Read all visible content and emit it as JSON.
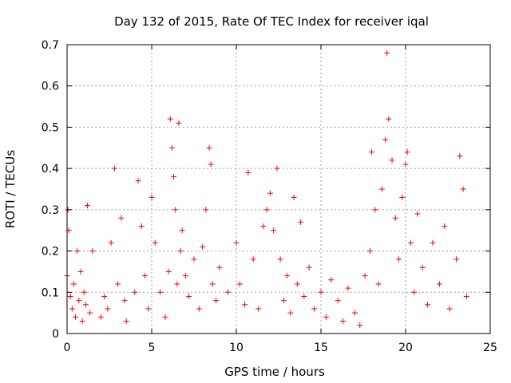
{
  "chart_data": {
    "type": "scatter",
    "title": "Day 132 of 2015, Rate Of TEC Index for receiver iqal",
    "xlabel": "GPS time / hours",
    "ylabel": "ROTI / TECUs",
    "xlim": [
      0,
      25
    ],
    "ylim": [
      0,
      0.7
    ],
    "x_ticks": [
      "0",
      "5",
      "10",
      "15",
      "20",
      "25"
    ],
    "y_ticks": [
      "0",
      "0.1",
      "0.2",
      "0.3",
      "0.4",
      "0.5",
      "0.6",
      "0.7"
    ],
    "marker": "+",
    "color": "#ff0000",
    "grid": true,
    "series": [
      {
        "name": "ROTI",
        "x": [
          0.0,
          0.05,
          0.1,
          0.2,
          0.3,
          0.4,
          0.5,
          0.6,
          0.7,
          0.8,
          0.9,
          1.0,
          1.1,
          1.2,
          1.35,
          1.5,
          2.0,
          2.2,
          2.4,
          2.6,
          2.8,
          3.0,
          3.2,
          3.4,
          3.5,
          4.0,
          4.2,
          4.4,
          4.6,
          4.8,
          5.0,
          5.2,
          5.5,
          5.8,
          6.0,
          6.1,
          6.2,
          6.3,
          6.4,
          6.5,
          6.6,
          6.7,
          6.8,
          7.0,
          7.2,
          7.5,
          7.8,
          8.0,
          8.2,
          8.4,
          8.5,
          8.6,
          8.8,
          9.0,
          9.5,
          10.0,
          10.2,
          10.5,
          10.7,
          11.0,
          11.3,
          11.6,
          11.8,
          12.0,
          12.2,
          12.4,
          12.6,
          12.8,
          13.0,
          13.2,
          13.4,
          13.6,
          13.8,
          14.0,
          14.3,
          14.6,
          15.0,
          15.3,
          15.6,
          16.0,
          16.3,
          16.6,
          17.0,
          17.3,
          17.6,
          17.9,
          18.0,
          18.2,
          18.4,
          18.6,
          18.8,
          18.9,
          19.0,
          19.2,
          19.4,
          19.6,
          19.8,
          20.0,
          20.1,
          20.3,
          20.5,
          20.7,
          21.0,
          21.3,
          21.6,
          22.0,
          22.3,
          22.6,
          23.0,
          23.2,
          23.4,
          23.6
        ],
        "y": [
          0.14,
          0.3,
          0.25,
          0.09,
          0.06,
          0.12,
          0.04,
          0.2,
          0.08,
          0.15,
          0.03,
          0.1,
          0.07,
          0.31,
          0.05,
          0.2,
          0.04,
          0.09,
          0.06,
          0.22,
          0.4,
          0.12,
          0.28,
          0.08,
          0.03,
          0.1,
          0.37,
          0.26,
          0.14,
          0.06,
          0.33,
          0.22,
          0.1,
          0.04,
          0.15,
          0.52,
          0.45,
          0.38,
          0.3,
          0.12,
          0.51,
          0.2,
          0.25,
          0.14,
          0.09,
          0.18,
          0.06,
          0.21,
          0.3,
          0.45,
          0.41,
          0.12,
          0.08,
          0.16,
          0.1,
          0.22,
          0.12,
          0.07,
          0.39,
          0.18,
          0.06,
          0.26,
          0.3,
          0.34,
          0.25,
          0.4,
          0.18,
          0.08,
          0.14,
          0.05,
          0.33,
          0.12,
          0.27,
          0.09,
          0.16,
          0.06,
          0.1,
          0.04,
          0.13,
          0.08,
          0.03,
          0.11,
          0.05,
          0.02,
          0.14,
          0.2,
          0.44,
          0.3,
          0.12,
          0.35,
          0.47,
          0.68,
          0.52,
          0.42,
          0.28,
          0.18,
          0.33,
          0.41,
          0.44,
          0.22,
          0.1,
          0.29,
          0.16,
          0.07,
          0.22,
          0.12,
          0.26,
          0.06,
          0.18,
          0.43,
          0.35,
          0.09
        ]
      }
    ]
  }
}
